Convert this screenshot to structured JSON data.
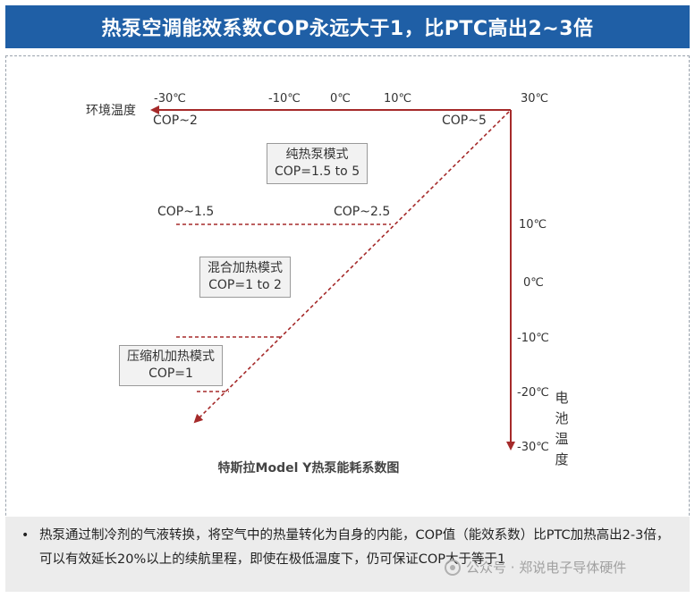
{
  "header": {
    "title": "热泵空调能效系数COP永远大于1，比PTC高出2~3倍"
  },
  "top_axis": {
    "name": "环境温度",
    "ticks": [
      "-30℃",
      "-10℃",
      "0℃",
      "10℃",
      "30℃"
    ]
  },
  "right_axis": {
    "name": "电池温度",
    "ticks": [
      "10℃",
      "0℃",
      "-10℃",
      "-20℃",
      "-30℃"
    ]
  },
  "cop_labels": {
    "cop_2": "COP~2",
    "cop_5": "COP~5",
    "cop_1_5": "COP~1.5",
    "cop_2_5": "COP~2.5"
  },
  "modes": [
    {
      "name": "纯热泵模式",
      "cop": "COP=1.5 to 5"
    },
    {
      "name": "混合加热模式",
      "cop": "COP=1 to 2"
    },
    {
      "name": "压缩机加热模式",
      "cop": "COP=1"
    }
  ],
  "caption": "特斯拉Model Y热泵能耗系数图",
  "summary": "热泵通过制冷剂的气液转换，将空气中的热量转化为自身的内能，COP值（能效系数）比PTC加热高出2-3倍，可以有效延长20%以上的续航里程，即使在极低温度下，仍可保证COP大于等于1",
  "watermark": "公众号 · 郑说电子导体硬件",
  "colors": {
    "title_bg": "#1f5fa6",
    "arrow": "#a52a2a"
  },
  "icons": [
    "bullet-icon",
    "wechat-icon"
  ]
}
